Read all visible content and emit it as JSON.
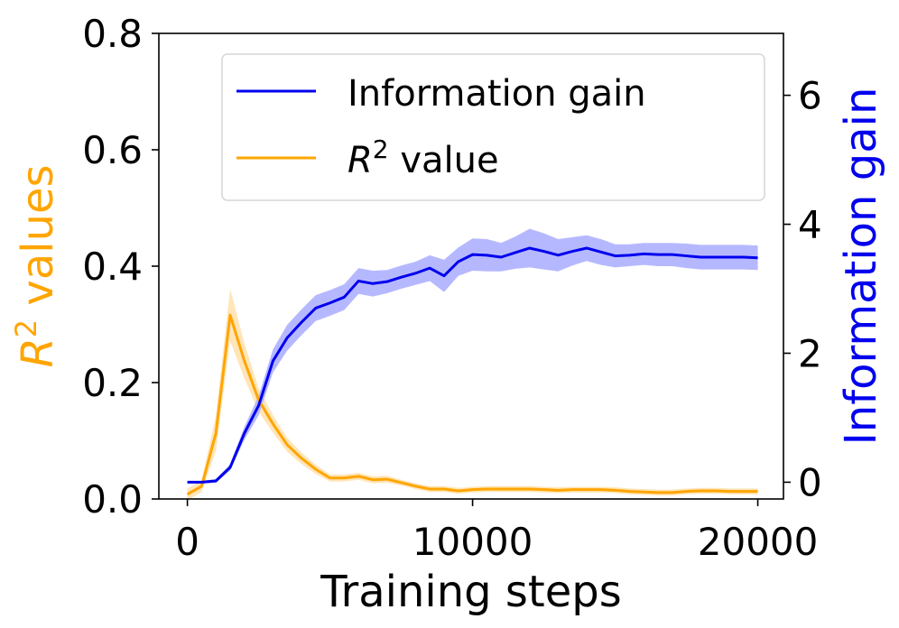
{
  "chart_data": {
    "type": "line",
    "title": "",
    "xlabel": "Training steps",
    "ylabel_left": "R² values",
    "ylabel_left_base": "R",
    "ylabel_left_sup": "2",
    "ylabel_left_rest": " values",
    "ylabel_right": "Information gain",
    "xlim": [
      -1000,
      20900
    ],
    "ylim_left": [
      0,
      0.8
    ],
    "ylim_right": [
      -0.26,
      6.96
    ],
    "xticks": [
      0,
      10000,
      20000
    ],
    "xtick_labels": [
      "0",
      "10000",
      "20000"
    ],
    "yticks_left": [
      0.0,
      0.2,
      0.4,
      0.6,
      0.8
    ],
    "ytick_labels_left": [
      "0.0",
      "0.2",
      "0.4",
      "0.6",
      "0.8"
    ],
    "yticks_right": [
      0,
      2,
      4,
      6
    ],
    "ytick_labels_right": [
      "0",
      "2",
      "4",
      "6"
    ],
    "grid": false,
    "legend_position": "top-right",
    "x": [
      0,
      500,
      1000,
      1500,
      2000,
      2500,
      3000,
      3500,
      4000,
      4500,
      5000,
      5500,
      6000,
      6500,
      7000,
      7500,
      8000,
      8500,
      9000,
      9500,
      10000,
      10500,
      11000,
      11500,
      12000,
      12500,
      13000,
      13500,
      14000,
      14500,
      15000,
      15500,
      16000,
      16500,
      17000,
      17500,
      18000,
      18500,
      19000,
      19500,
      20000
    ],
    "series": [
      {
        "name": "Information gain",
        "axis": "right",
        "color": "#0000ee",
        "band_color": "#aeb0ff",
        "values": [
          0,
          0,
          0.02,
          0.23,
          0.76,
          1.19,
          1.88,
          2.24,
          2.48,
          2.7,
          2.78,
          2.87,
          3.12,
          3.08,
          3.11,
          3.18,
          3.24,
          3.32,
          3.2,
          3.42,
          3.53,
          3.52,
          3.49,
          3.56,
          3.63,
          3.58,
          3.52,
          3.58,
          3.63,
          3.57,
          3.51,
          3.52,
          3.54,
          3.53,
          3.53,
          3.51,
          3.49,
          3.49,
          3.49,
          3.49,
          3.48
        ],
        "band": [
          0.02,
          0.02,
          0.03,
          0.05,
          0.1,
          0.15,
          0.18,
          0.2,
          0.2,
          0.2,
          0.2,
          0.2,
          0.2,
          0.2,
          0.18,
          0.18,
          0.18,
          0.2,
          0.25,
          0.22,
          0.25,
          0.25,
          0.22,
          0.25,
          0.3,
          0.28,
          0.25,
          0.22,
          0.2,
          0.2,
          0.18,
          0.17,
          0.17,
          0.18,
          0.18,
          0.19,
          0.19,
          0.19,
          0.19,
          0.19,
          0.19
        ]
      },
      {
        "name": "R² value",
        "legend_base": "R",
        "legend_sup": "2",
        "legend_rest": " value",
        "axis": "left",
        "color": "#ffa500",
        "band_color": "#ffdfa6",
        "values": [
          0.008,
          0.022,
          0.113,
          0.316,
          0.237,
          0.17,
          0.129,
          0.093,
          0.07,
          0.051,
          0.036,
          0.036,
          0.039,
          0.033,
          0.034,
          0.028,
          0.022,
          0.017,
          0.017,
          0.014,
          0.016,
          0.017,
          0.017,
          0.017,
          0.017,
          0.016,
          0.015,
          0.016,
          0.016,
          0.016,
          0.015,
          0.013,
          0.012,
          0.011,
          0.011,
          0.013,
          0.014,
          0.014,
          0.013,
          0.013,
          0.013
        ],
        "band": [
          0.01,
          0.01,
          0.03,
          0.045,
          0.03,
          0.02,
          0.015,
          0.012,
          0.01,
          0.008,
          0.006,
          0.006,
          0.006,
          0.006,
          0.006,
          0.005,
          0.005,
          0.005,
          0.005,
          0.005,
          0.005,
          0.005,
          0.005,
          0.005,
          0.005,
          0.005,
          0.005,
          0.005,
          0.005,
          0.005,
          0.005,
          0.005,
          0.005,
          0.005,
          0.005,
          0.005,
          0.005,
          0.005,
          0.005,
          0.005,
          0.005
        ]
      }
    ]
  }
}
